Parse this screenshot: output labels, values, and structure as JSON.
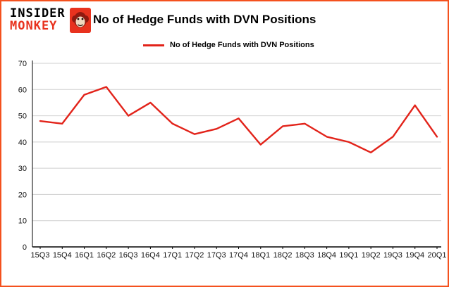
{
  "logo": {
    "line1": "INSIDER",
    "line2": "MONKEY"
  },
  "header": {
    "title": "No of Hedge Funds with DVN Positions"
  },
  "legend": {
    "label": "No of Hedge Funds with DVN Positions"
  },
  "colors": {
    "border": "#f4511e",
    "line": "#e2231a",
    "grid": "#cfcfcf",
    "axis": "#000000",
    "logo_red": "#e8321e"
  },
  "chart_data": {
    "type": "line",
    "title": "No of Hedge Funds with DVN Positions",
    "categories": [
      "15Q3",
      "15Q4",
      "16Q1",
      "16Q2",
      "16Q3",
      "16Q4",
      "17Q1",
      "17Q2",
      "17Q3",
      "17Q4",
      "18Q1",
      "18Q2",
      "18Q3",
      "18Q4",
      "19Q1",
      "19Q2",
      "19Q3",
      "19Q4",
      "20Q1"
    ],
    "values": [
      48,
      47,
      58,
      61,
      50,
      55,
      47,
      43,
      45,
      49,
      39,
      46,
      47,
      42,
      40,
      36,
      42,
      54,
      42
    ],
    "xlabel": "",
    "ylabel": "",
    "ylim": [
      0,
      70
    ],
    "yticks": [
      0,
      10,
      20,
      30,
      40,
      50,
      60,
      70
    ],
    "line_color": "#e2231a",
    "grid": true,
    "legend_position": "top-left"
  }
}
